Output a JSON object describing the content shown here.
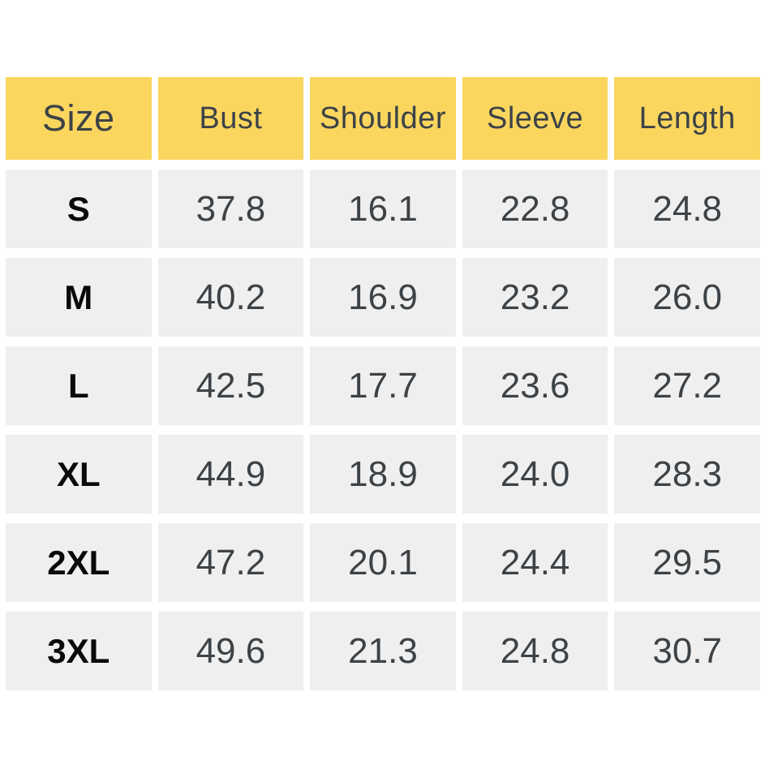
{
  "colors": {
    "header_bg": "#FAD65F",
    "cell_bg": "#EFEFEF",
    "header_text": "#3C4246",
    "value_text": "#3D4246",
    "size_label_text": "#0A0A0A",
    "page_bg": "#FFFFFF"
  },
  "table": {
    "columns": [
      "Size",
      "Bust",
      "Shoulder",
      "Sleeve",
      "Length"
    ],
    "rows": [
      {
        "size": "S",
        "values": [
          "37.8",
          "16.1",
          "22.8",
          "24.8"
        ]
      },
      {
        "size": "M",
        "values": [
          "40.2",
          "16.9",
          "23.2",
          "26.0"
        ]
      },
      {
        "size": "L",
        "values": [
          "42.5",
          "17.7",
          "23.6",
          "27.2"
        ]
      },
      {
        "size": "XL",
        "values": [
          "44.9",
          "18.9",
          "24.0",
          "28.3"
        ]
      },
      {
        "size": "2XL",
        "values": [
          "47.2",
          "20.1",
          "24.4",
          "29.5"
        ]
      },
      {
        "size": "3XL",
        "values": [
          "49.6",
          "21.3",
          "24.8",
          "30.7"
        ]
      }
    ]
  },
  "chart_data": {
    "type": "table",
    "columns": [
      "Size",
      "Bust",
      "Shoulder",
      "Sleeve",
      "Length"
    ],
    "rows": [
      [
        "S",
        37.8,
        16.1,
        22.8,
        24.8
      ],
      [
        "M",
        40.2,
        16.9,
        23.2,
        26.0
      ],
      [
        "L",
        42.5,
        17.7,
        23.6,
        27.2
      ],
      [
        "XL",
        44.9,
        18.9,
        24.0,
        28.3
      ],
      [
        "2XL",
        47.2,
        20.1,
        24.4,
        29.5
      ],
      [
        "3XL",
        49.6,
        21.3,
        24.8,
        30.7
      ]
    ]
  }
}
